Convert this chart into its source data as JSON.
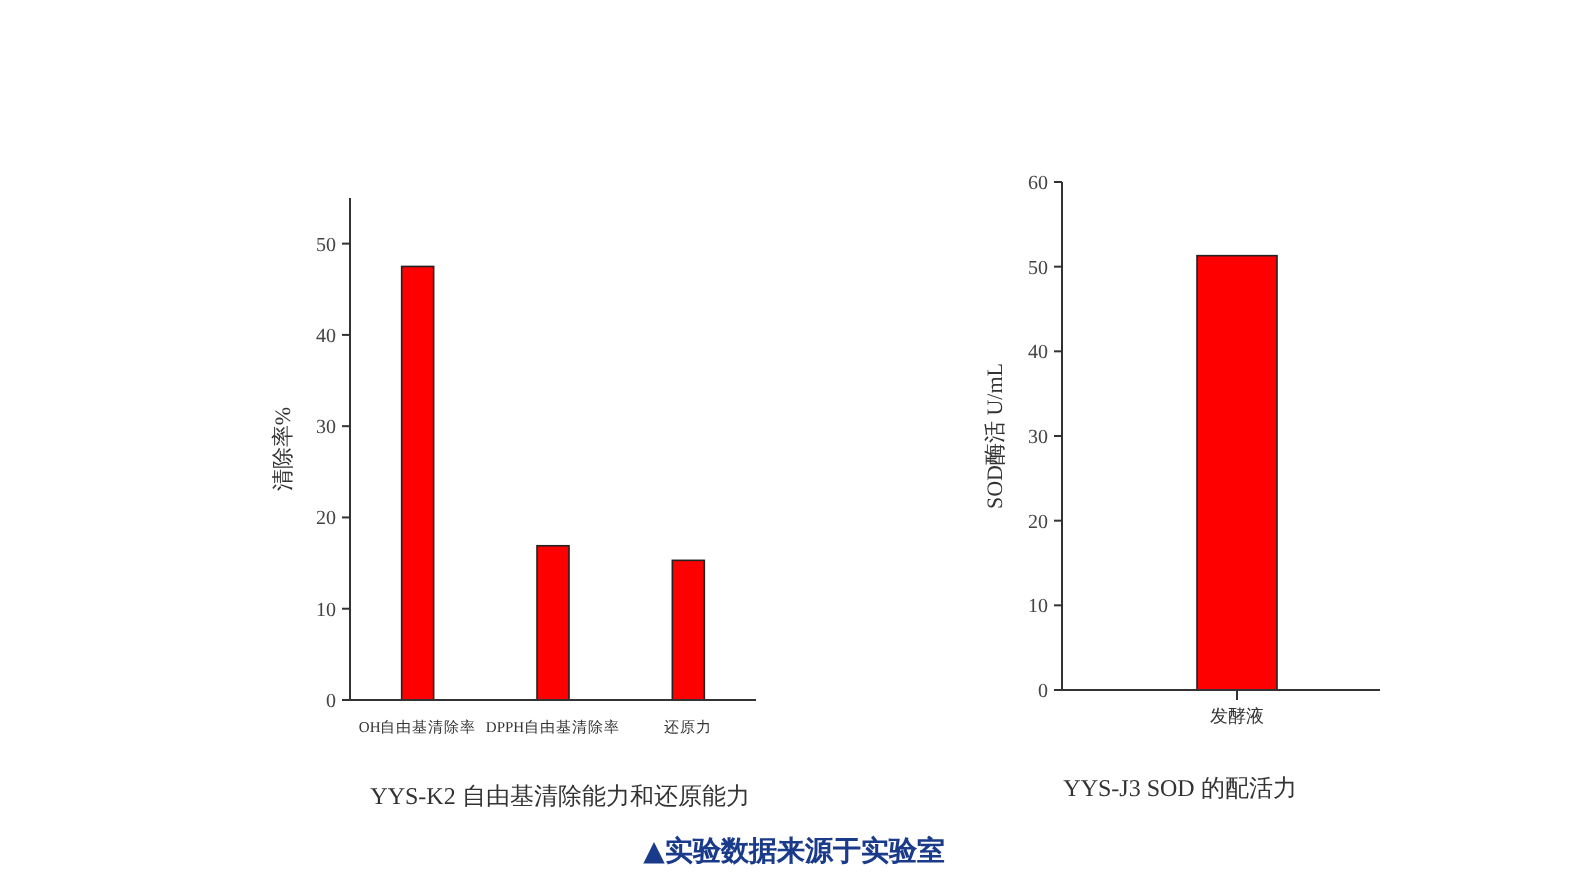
{
  "chart_data": [
    {
      "type": "bar",
      "title": "YYS-K2 自由基清除能力和还原能力",
      "ylabel": "清除率%",
      "categories": [
        "OH自由基清除率",
        "DPPH自由基清除率",
        "还原力"
      ],
      "values": [
        47.5,
        16.9,
        15.3
      ],
      "color": "#ff0000",
      "ylim": [
        0,
        55
      ],
      "yticks": [
        0,
        10,
        20,
        30,
        40,
        50
      ],
      "grid": false,
      "annotations": [
        "▲实验数据来源于实验室"
      ]
    },
    {
      "type": "bar",
      "title": "YYS-J3 SOD 的配活力",
      "ylabel": "SOD酶活 U/mL",
      "categories": [
        "发酵液"
      ],
      "values": [
        51.3
      ],
      "color": "#ff0000",
      "ylim": [
        0,
        60
      ],
      "yticks": [
        0,
        10,
        20,
        30,
        40,
        50,
        60
      ],
      "grid": false
    }
  ]
}
